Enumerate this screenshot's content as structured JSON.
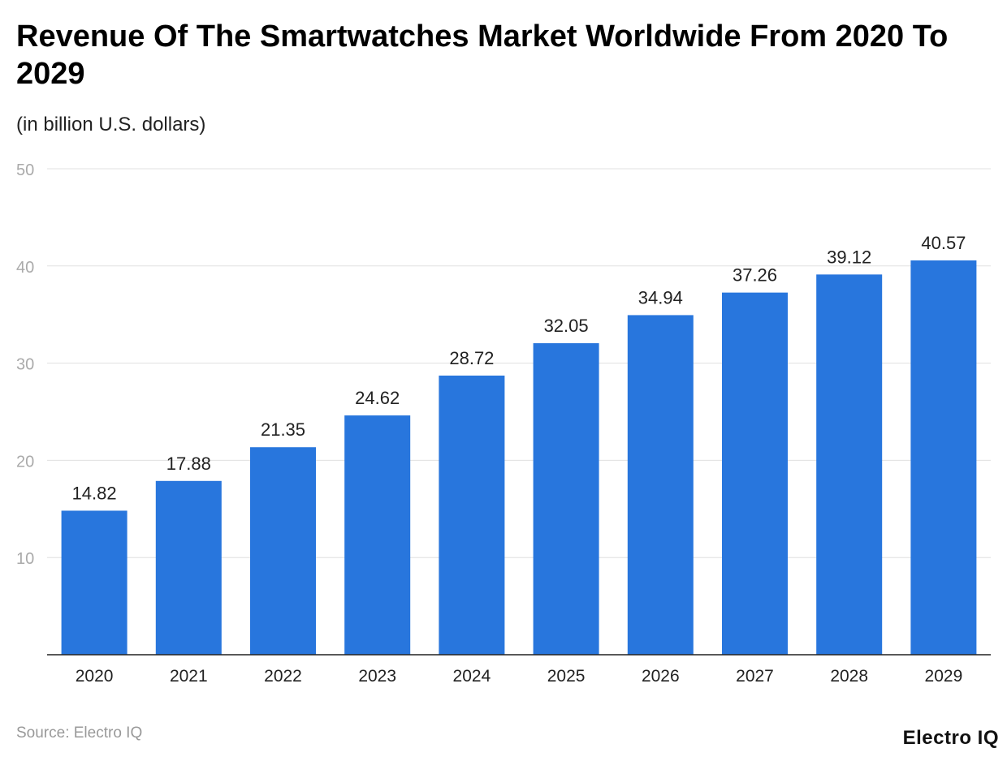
{
  "chart_data": {
    "type": "bar",
    "title": "Revenue Of The Smartwatches Market Worldwide From 2020 To 2029",
    "subtitle": "(in billion U.S. dollars)",
    "categories": [
      "2020",
      "2021",
      "2022",
      "2023",
      "2024",
      "2025",
      "2026",
      "2027",
      "2028",
      "2029"
    ],
    "values": [
      14.82,
      17.88,
      21.35,
      24.62,
      28.72,
      32.05,
      34.94,
      37.26,
      39.12,
      40.57
    ],
    "value_labels": [
      "14.82",
      "17.88",
      "21.35",
      "24.62",
      "28.72",
      "32.05",
      "34.94",
      "37.26",
      "39.12",
      "40.57"
    ],
    "ylim": [
      0,
      50
    ],
    "yticks": [
      "10",
      "20",
      "30",
      "40",
      "50"
    ],
    "grid": true,
    "bar_color": "#2876dd",
    "xlabel": "",
    "ylabel": ""
  },
  "source": "Source: Electro IQ",
  "logo": "Electro IQ"
}
